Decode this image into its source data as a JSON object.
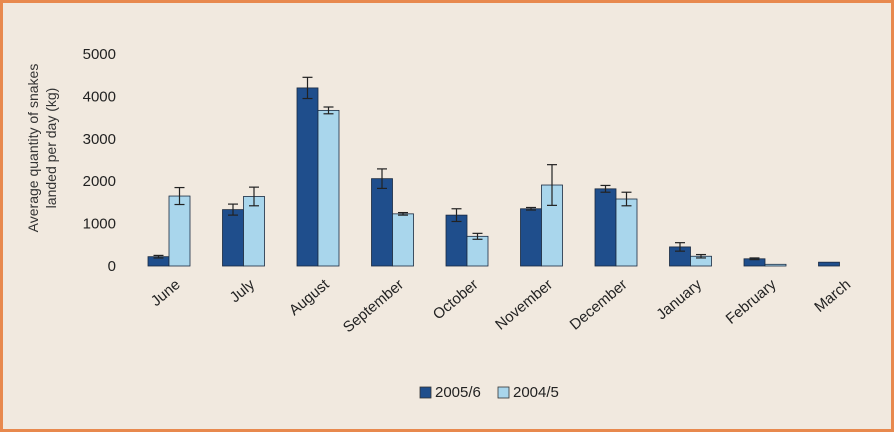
{
  "chart_data": {
    "type": "bar",
    "ylabel_line1": "Average quantity of snakes",
    "ylabel_line2": "landed per day (kg)",
    "ylim": [
      0,
      5000
    ],
    "yticks": [
      0,
      1000,
      2000,
      3000,
      4000,
      5000
    ],
    "categories": [
      "June",
      "July",
      "August",
      "September",
      "October",
      "November",
      "December",
      "January",
      "February",
      "March"
    ],
    "series": [
      {
        "name": "2005/6",
        "color": "#1f4e8c",
        "values": [
          220,
          1330,
          4200,
          2060,
          1200,
          1350,
          1820,
          450,
          170,
          90
        ],
        "errors": [
          30,
          130,
          250,
          230,
          150,
          30,
          80,
          100,
          20,
          0
        ]
      },
      {
        "name": "2004/5",
        "color": "#a9d6ec",
        "values": [
          1650,
          1640,
          3670,
          1230,
          700,
          1910,
          1580,
          230,
          40,
          0
        ],
        "errors": [
          200,
          220,
          80,
          30,
          70,
          480,
          160,
          40,
          0,
          0
        ]
      }
    ],
    "legend_position": "bottom-center",
    "grid": false
  }
}
